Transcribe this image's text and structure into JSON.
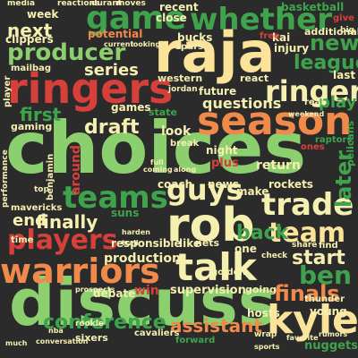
{
  "palette": {
    "background": "#2b2b2b",
    "green": "#3fa34d",
    "light_green": "#8ccf6f",
    "red": "#d7403a",
    "orange": "#f08a4b",
    "pale_yellow": "#fbe39a",
    "light_orange": "#f7b267",
    "cream": "#f5efb0"
  },
  "words": [
    {
      "text": "choices",
      "size": "large",
      "color": "#8ccf6f"
    },
    {
      "text": "discuss",
      "size": "large",
      "color": "#8ccf6f"
    },
    {
      "text": "raja",
      "size": "large",
      "color": "#fbe39a"
    },
    {
      "text": "ringers",
      "size": "large",
      "color": "#d7403a"
    },
    {
      "text": "game",
      "size": "large",
      "color": "#3fa34d"
    },
    {
      "text": "whether",
      "size": "large",
      "color": "#3fa34d"
    },
    {
      "text": "season",
      "size": "large",
      "color": "#f08a4b"
    },
    {
      "text": "talk",
      "size": "large",
      "color": "#f5efb0"
    },
    {
      "text": "rob",
      "size": "large",
      "color": "#f5efb0"
    },
    {
      "text": "teams",
      "size": "large",
      "color": "#3fa34d"
    },
    {
      "text": "warriors",
      "size": "large",
      "color": "#f08a4b"
    },
    {
      "text": "kyle",
      "size": "large",
      "color": "#fbe39a"
    },
    {
      "text": "players",
      "size": "medium",
      "color": "#d7403a"
    },
    {
      "text": "ringer",
      "size": "medium",
      "color": "#f5efb0"
    },
    {
      "text": "producer",
      "size": "medium",
      "color": "#8ccf6f"
    },
    {
      "text": "guys",
      "size": "medium",
      "color": "#f5efb0"
    },
    {
      "text": "trade",
      "size": "medium",
      "color": "#f5efb0"
    },
    {
      "text": "draft",
      "size": "medium",
      "color": "#f5efb0"
    },
    {
      "text": "team",
      "size": "medium",
      "color": "#fbe39a"
    },
    {
      "text": "ben",
      "size": "medium",
      "color": "#3fa34d"
    },
    {
      "text": "conference",
      "size": "medium",
      "color": "#3fa34d"
    },
    {
      "text": "assistant",
      "size": "medium",
      "color": "#f08a4b"
    },
    {
      "text": "finals",
      "size": "medium",
      "color": "#f08a4b"
    },
    {
      "text": "new",
      "size": "medium",
      "color": "#3fa34d"
    },
    {
      "text": "league",
      "size": "medium",
      "color": "#3fa34d"
    },
    {
      "text": "later",
      "size": "medium",
      "color": "#3fa34d"
    },
    {
      "text": "next",
      "size": "medium",
      "color": "#f5efb0"
    },
    {
      "text": "first",
      "size": "medium",
      "color": "#3fa34d"
    },
    {
      "text": "series",
      "size": "medium",
      "color": "#f5efb0"
    },
    {
      "text": "finally",
      "size": "medium",
      "color": "#f5efb0"
    },
    {
      "text": "end",
      "size": "medium",
      "color": "#f5efb0"
    },
    {
      "text": "start",
      "size": "medium",
      "color": "#f5efb0"
    },
    {
      "text": "back",
      "size": "medium",
      "color": "#3fa34d"
    },
    {
      "text": "production",
      "size": "medium",
      "color": "#f5efb0"
    },
    {
      "text": "questions",
      "size": "medium",
      "color": "#f5efb0"
    },
    {
      "text": "play",
      "size": "medium",
      "color": "#3fa34d"
    },
    {
      "text": "week",
      "size": "small",
      "color": "#f5efb0"
    },
    {
      "text": "clippers",
      "size": "small",
      "color": "#f5efb0"
    },
    {
      "text": "potential",
      "size": "small",
      "color": "#f08a4b"
    },
    {
      "text": "bucks",
      "size": "small",
      "color": "#f5efb0"
    },
    {
      "text": "injury",
      "size": "small",
      "color": "#f5efb0"
    },
    {
      "text": "kai",
      "size": "small",
      "color": "#f5efb0"
    },
    {
      "text": "free",
      "size": "small",
      "color": "#d7403a"
    },
    {
      "text": "last",
      "size": "small",
      "color": "#f5efb0"
    },
    {
      "text": "additional",
      "size": "small",
      "color": "#f5efb0"
    },
    {
      "text": "basketball",
      "size": "small",
      "color": "#3fa34d"
    },
    {
      "text": "recent",
      "size": "small",
      "color": "#f5efb0"
    },
    {
      "text": "close",
      "size": "small",
      "color": "#f5efb0"
    },
    {
      "text": "future",
      "size": "small",
      "color": "#f5efb0"
    },
    {
      "text": "react",
      "size": "small",
      "color": "#f5efb0"
    },
    {
      "text": "games",
      "size": "small",
      "color": "#f5efb0"
    },
    {
      "text": "state",
      "size": "small",
      "color": "#3fa34d"
    },
    {
      "text": "look",
      "size": "small",
      "color": "#f5efb0"
    },
    {
      "text": "night",
      "size": "small",
      "color": "#f5efb0"
    },
    {
      "text": "plus",
      "size": "small",
      "color": "#d7403a"
    },
    {
      "text": "return",
      "size": "small",
      "color": "#f5efb0"
    },
    {
      "text": "gaming",
      "size": "small",
      "color": "#f5efb0"
    },
    {
      "text": "around",
      "size": "small",
      "color": "#d7403a"
    },
    {
      "text": "coach",
      "size": "small",
      "color": "#f5efb0"
    },
    {
      "text": "news",
      "size": "small",
      "color": "#f5efb0"
    },
    {
      "text": "make",
      "size": "small",
      "color": "#f5efb0"
    },
    {
      "text": "rockets",
      "size": "small",
      "color": "#f5efb0"
    },
    {
      "text": "suns",
      "size": "small",
      "color": "#3fa34d"
    },
    {
      "text": "responsible",
      "size": "small",
      "color": "#f5efb0"
    },
    {
      "text": "like",
      "size": "small",
      "color": "#f5efb0"
    },
    {
      "text": "one",
      "size": "small",
      "color": "#f5efb0"
    },
    {
      "text": "mavericks",
      "size": "small",
      "color": "#f5efb0"
    },
    {
      "text": "time",
      "size": "small",
      "color": "#f5efb0"
    },
    {
      "text": "nets",
      "size": "small",
      "color": "#f5efb0"
    },
    {
      "text": "debate",
      "size": "small",
      "color": "#f5efb0"
    },
    {
      "text": "win",
      "size": "small",
      "color": "#d7403a"
    },
    {
      "text": "supervision",
      "size": "small",
      "color": "#f5efb0"
    },
    {
      "text": "hosts",
      "size": "small",
      "color": "#f5efb0"
    },
    {
      "text": "going",
      "size": "small",
      "color": "#f5efb0"
    },
    {
      "text": "young",
      "size": "small",
      "color": "#f5efb0"
    },
    {
      "text": "sixers",
      "size": "small",
      "color": "#f5efb0"
    },
    {
      "text": "cavaliers",
      "size": "small",
      "color": "#f5efb0"
    },
    {
      "text": "nuggets",
      "size": "small",
      "color": "#3fa34d"
    },
    {
      "text": "western",
      "size": "small",
      "color": "#f5efb0"
    },
    {
      "text": "mailbag",
      "size": "small",
      "color": "#f5efb0"
    },
    {
      "text": "thunder",
      "size": "small",
      "color": "#f5efb0"
    },
    {
      "text": "pelicans",
      "size": "small",
      "color": "#3fa34d"
    },
    {
      "text": "golden",
      "size": "small",
      "color": "#f5efb0"
    },
    {
      "text": "spurs",
      "size": "small",
      "color": "#f5efb0"
    },
    {
      "text": "media",
      "size": "small",
      "color": "#f5efb0"
    },
    {
      "text": "reactions",
      "size": "small",
      "color": "#f5efb0"
    },
    {
      "text": "durant",
      "size": "small",
      "color": "#f5efb0"
    },
    {
      "text": "moves",
      "size": "small",
      "color": "#f5efb0"
    },
    {
      "text": "give",
      "size": "small",
      "color": "#d7403a"
    },
    {
      "text": "big",
      "size": "small",
      "color": "#f5efb0"
    },
    {
      "text": "current",
      "size": "small",
      "color": "#f5efb0"
    },
    {
      "text": "looking",
      "size": "small",
      "color": "#f5efb0"
    },
    {
      "text": "jordan",
      "size": "small",
      "color": "#f5efb0"
    },
    {
      "text": "performance",
      "size": "small",
      "color": "#f5efb0"
    },
    {
      "text": "top",
      "size": "small",
      "color": "#f5efb0"
    },
    {
      "text": "player",
      "size": "small",
      "color": "#f5efb0"
    },
    {
      "text": "weekend",
      "size": "small",
      "color": "#f5efb0"
    },
    {
      "text": "real",
      "size": "small",
      "color": "#f5efb0"
    },
    {
      "text": "break",
      "size": "small",
      "color": "#f5efb0"
    },
    {
      "text": "raptors",
      "size": "small",
      "color": "#3fa34d"
    },
    {
      "text": "ones",
      "size": "small",
      "color": "#d7403a"
    },
    {
      "text": "benjamin",
      "size": "small",
      "color": "#f5efb0"
    },
    {
      "text": "find",
      "size": "small",
      "color": "#f5efb0"
    },
    {
      "text": "share",
      "size": "small",
      "color": "#f5efb0"
    },
    {
      "text": "check",
      "size": "small",
      "color": "#f5efb0"
    },
    {
      "text": "harden",
      "size": "small",
      "color": "#f5efb0"
    },
    {
      "text": "prospects",
      "size": "small",
      "color": "#f5efb0"
    },
    {
      "text": "forward",
      "size": "small",
      "color": "#3fa34d"
    },
    {
      "text": "rookie",
      "size": "small",
      "color": "#f5efb0"
    },
    {
      "text": "trail",
      "size": "small",
      "color": "#f5efb0"
    },
    {
      "text": "wrap",
      "size": "small",
      "color": "#f5efb0"
    },
    {
      "text": "favorite",
      "size": "small",
      "color": "#f5efb0"
    },
    {
      "text": "rumors",
      "size": "small",
      "color": "#f5efb0"
    },
    {
      "text": "sports",
      "size": "small",
      "color": "#f5efb0"
    },
    {
      "text": "conversation",
      "size": "small",
      "color": "#f5efb0"
    },
    {
      "text": "much",
      "size": "small",
      "color": "#f5efb0"
    },
    {
      "text": "nba",
      "size": "small",
      "color": "#f5efb0"
    },
    {
      "text": "full",
      "size": "small",
      "color": "#f5efb0"
    },
    {
      "text": "coming",
      "size": "small",
      "color": "#f5efb0"
    },
    {
      "text": "along",
      "size": "small",
      "color": "#f5efb0"
    }
  ]
}
